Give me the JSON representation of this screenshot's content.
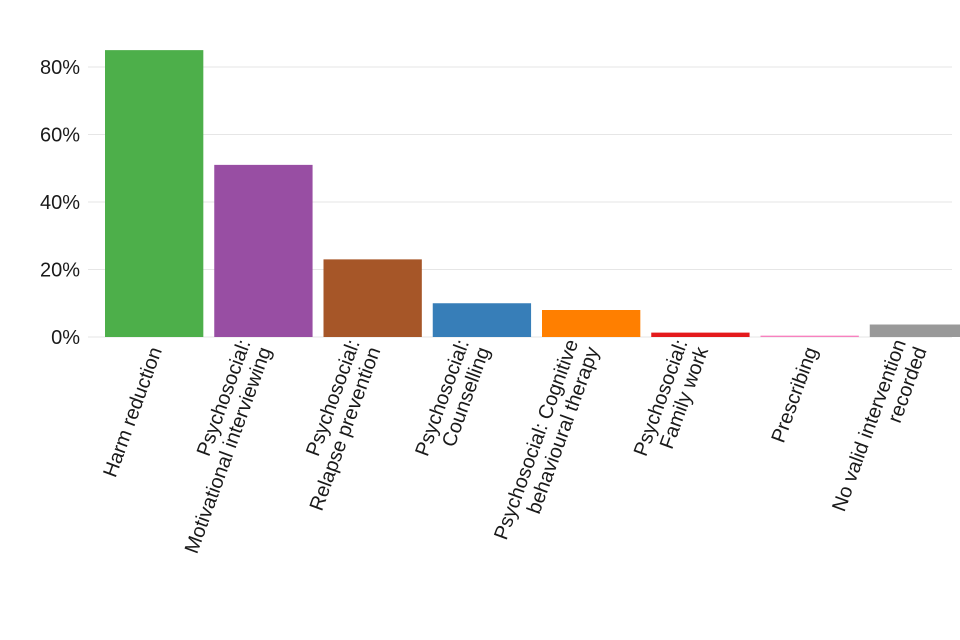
{
  "chart_data": {
    "type": "bar",
    "categories": [
      [
        "Harm reduction"
      ],
      [
        "Psychosocial:",
        "Motivational interviewing"
      ],
      [
        "Psychosocial:",
        "Relapse prevention"
      ],
      [
        "Psychosocial:",
        "Counselling"
      ],
      [
        "Psychosocial: Cognitive",
        "behavioural therapy"
      ],
      [
        "Psychosocial:",
        "Family work"
      ],
      [
        "Prescribing"
      ],
      [
        "No valid intervention",
        "recorded"
      ]
    ],
    "values": [
      85,
      51,
      23,
      10,
      8,
      1.3,
      0.4,
      3.7
    ],
    "colors": [
      "#4daf4a",
      "#984ea3",
      "#a65628",
      "#377eb8",
      "#ff7f00",
      "#e41a1c",
      "#f781bf",
      "#999999"
    ],
    "yticks": [
      "0%",
      "20%",
      "40%",
      "60%",
      "80%"
    ],
    "ytick_values": [
      0,
      20,
      40,
      60,
      80
    ],
    "ylim": [
      0,
      88
    ],
    "grid": true,
    "title": "",
    "xlabel": "",
    "ylabel": ""
  }
}
